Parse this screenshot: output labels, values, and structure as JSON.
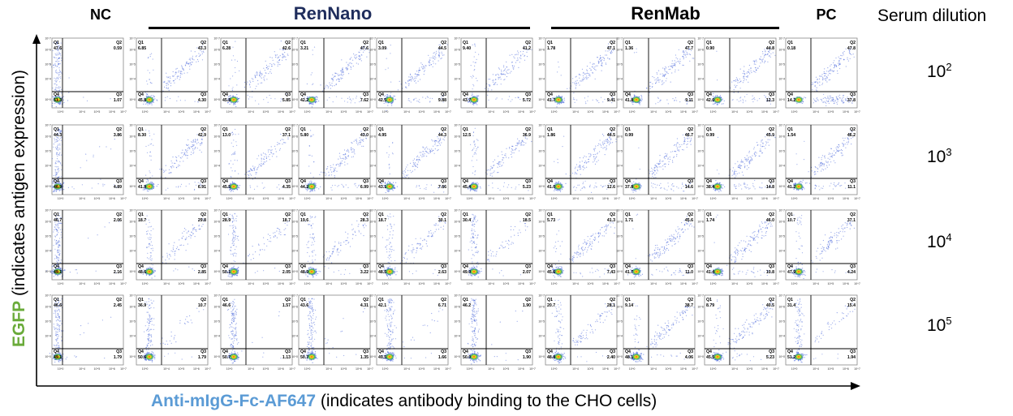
{
  "header": {
    "nc": "NC",
    "rennano": "RenNano",
    "renmab": "RenMab",
    "pc": "PC",
    "serum_dilution": "Serum dilution"
  },
  "colors": {
    "rennano_title": "#1f2d5c",
    "egfp_green": "#6aab3a",
    "antibody_blue": "#5b9bd5",
    "dot_blue": "#3f5fd8",
    "gate_line": "#000000"
  },
  "axes": {
    "y_title_highlight": "EGFP",
    "y_title_rest": " (indicates antigen expression)",
    "x_title_highlight": "Anti-mIgG-Fc-AF647",
    "x_title_rest": " (indicates antibody binding to the CHO cells)"
  },
  "chart_data": {
    "type": "scatter",
    "description_of_grid": "flow-cytometry dot plots, 4 dilutions x 10 samples",
    "quadrant_labels": [
      "Q1",
      "Q2",
      "Q3",
      "Q4"
    ],
    "axis_ticks": [
      "10^0",
      "10^4",
      "10^5",
      "10^6",
      "10^7"
    ],
    "columns": [
      "NC",
      "RenNano",
      "RenNano",
      "RenNano",
      "RenNano",
      "RenNano",
      "RenMab",
      "RenMab",
      "RenMab",
      "PC"
    ],
    "rows": [
      {
        "dilution_base": "10",
        "dilution_exp": "2",
        "panels": [
          {
            "q1": "47.6",
            "q2": "0.59",
            "q3": "1.07",
            "q4": "51.3"
          },
          {
            "q1": "6.85",
            "q2": "43.3",
            "q3": "4.30",
            "q4": "45.8"
          },
          {
            "q1": "6.28",
            "q2": "42.6",
            "q3": "5.85",
            "q4": "45.8"
          },
          {
            "q1": "3.21",
            "q2": "47.6",
            "q3": "7.62",
            "q4": "42.2"
          },
          {
            "q1": "3.09",
            "q2": "44.5",
            "q3": "9.88",
            "q4": "42.5"
          },
          {
            "q1": "9.40",
            "q2": "41.2",
            "q3": "5.72",
            "q4": "43.7"
          },
          {
            "q1": "1.78",
            "q2": "47.1",
            "q3": "9.41",
            "q4": "41.7"
          },
          {
            "q1": "1.36",
            "q2": "47.7",
            "q3": "9.11",
            "q4": "41.8"
          },
          {
            "q1": "0.90",
            "q2": "44.8",
            "q3": "12.3",
            "q4": "42.0"
          },
          {
            "q1": "0.18",
            "q2": "47.8",
            "q3": "37.8",
            "q4": "14.2"
          }
        ]
      },
      {
        "dilution_base": "10",
        "dilution_exp": "3",
        "panels": [
          {
            "q1": "44.3",
            "q2": "3.86",
            "q3": "4.89",
            "q4": "46.9"
          },
          {
            "q1": "8.30",
            "q2": "42.9",
            "q3": "6.91",
            "q4": "41.9"
          },
          {
            "q1": "13.0",
            "q2": "37.1",
            "q3": "4.35",
            "q4": "45.5"
          },
          {
            "q1": "5.80",
            "q2": "43.0",
            "q3": "6.99",
            "q4": "44.2"
          },
          {
            "q1": "4.95",
            "q2": "44.3",
            "q3": "7.66",
            "q4": "43.1"
          },
          {
            "q1": "12.5",
            "q2": "36.9",
            "q3": "5.23",
            "q4": "45.4"
          },
          {
            "q1": "1.86",
            "q2": "44.5",
            "q3": "12.6",
            "q4": "41.0"
          },
          {
            "q1": "0.99",
            "q2": "46.7",
            "q3": "14.6",
            "q4": "37.8"
          },
          {
            "q1": "0.99",
            "q2": "45.9",
            "q3": "14.8",
            "q4": "38.4"
          },
          {
            "q1": "1.54",
            "q2": "46.2",
            "q3": "11.1",
            "q4": "41.2"
          }
        ]
      },
      {
        "dilution_base": "10",
        "dilution_exp": "4",
        "panels": [
          {
            "q1": "46.7",
            "q2": "2.06",
            "q3": "2.16",
            "q4": "49.1"
          },
          {
            "q1": "18.7",
            "q2": "29.8",
            "q3": "2.85",
            "q4": "48.6"
          },
          {
            "q1": "28.9",
            "q2": "18.7",
            "q3": "2.05",
            "q4": "50.1"
          },
          {
            "q1": "19.6",
            "q2": "28.3",
            "q3": "3.22",
            "q4": "48.9"
          },
          {
            "q1": "18.7",
            "q2": "30.1",
            "q3": "2.63",
            "q4": "48.5"
          },
          {
            "q1": "30.4",
            "q2": "18.5",
            "q3": "2.07",
            "q4": "49.0"
          },
          {
            "q1": "5.73",
            "q2": "41.3",
            "q3": "7.43",
            "q4": "45.6"
          },
          {
            "q1": "1.71",
            "q2": "45.6",
            "q3": "11.0",
            "q4": "41.7"
          },
          {
            "q1": "1.74",
            "q2": "46.0",
            "q3": "10.8",
            "q4": "41.4"
          },
          {
            "q1": "10.7",
            "q2": "37.1",
            "q3": "4.24",
            "q4": "47.9"
          }
        ]
      },
      {
        "dilution_base": "10",
        "dilution_exp": "5",
        "panels": [
          {
            "q1": "46.6",
            "q2": "2.45",
            "q3": "1.79",
            "q4": "49.1"
          },
          {
            "q1": "36.9",
            "q2": "10.7",
            "q3": "1.79",
            "q4": "50.6"
          },
          {
            "q1": "46.6",
            "q2": "1.57",
            "q3": "1.13",
            "q4": "50.7"
          },
          {
            "q1": "43.6",
            "q2": "4.31",
            "q3": "1.35",
            "q4": "50.7"
          },
          {
            "q1": "42.1",
            "q2": "6.71",
            "q3": "1.66",
            "q4": "49.5"
          },
          {
            "q1": "46.2",
            "q2": "1.90",
            "q3": "1.90",
            "q4": "50.0"
          },
          {
            "q1": "20.7",
            "q2": "28.1",
            "q3": "2.40",
            "q4": "48.8"
          },
          {
            "q1": "9.14",
            "q2": "38.7",
            "q3": "4.06",
            "q4": "48.1"
          },
          {
            "q1": "8.79",
            "q2": "40.5",
            "q3": "5.23",
            "q4": "45.5"
          },
          {
            "q1": "31.4",
            "q2": "15.4",
            "q3": "1.94",
            "q4": "51.2"
          }
        ]
      }
    ]
  }
}
